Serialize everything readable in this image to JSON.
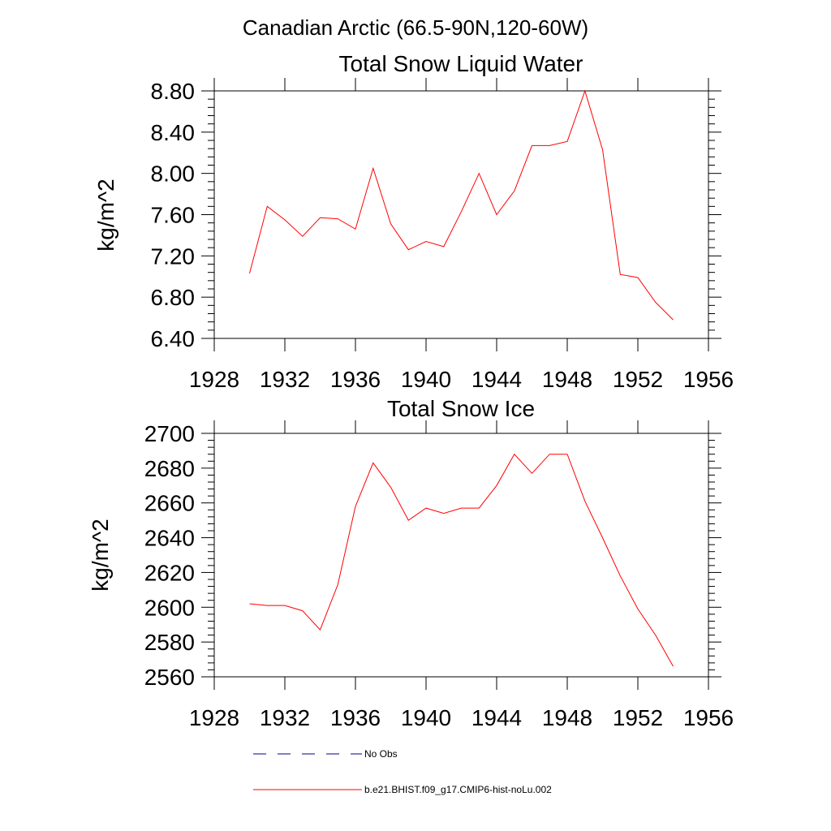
{
  "title": "Canadian Arctic (66.5-90N,120-60W)",
  "legend": {
    "items": [
      {
        "label": "No Obs",
        "color": "#000080",
        "dash": "dashed"
      },
      {
        "label": "b.e21.BHIST.f09_g17.CMIP6-hist-noLu.002",
        "color": "#ff0000",
        "dash": "solid"
      }
    ]
  },
  "chart_data": [
    {
      "type": "line",
      "title": "Total Snow Liquid Water",
      "ylabel": "kg/m^2",
      "xlabel": "",
      "xlim": [
        1928,
        1956
      ],
      "ylim": [
        6.4,
        8.8
      ],
      "xticks": [
        1928,
        1932,
        1936,
        1940,
        1944,
        1948,
        1952,
        1956
      ],
      "yticks": [
        "6.40",
        "6.80",
        "7.20",
        "7.60",
        "8.00",
        "8.40",
        "8.80"
      ],
      "grid": false,
      "series": [
        {
          "color": "#ff0000",
          "x": [
            1930,
            1931,
            1932,
            1933,
            1934,
            1935,
            1936,
            1937,
            1938,
            1939,
            1940,
            1941,
            1942,
            1943,
            1944,
            1945,
            1946,
            1947,
            1948,
            1949,
            1950,
            1951,
            1952,
            1953,
            1954
          ],
          "y": [
            7.03,
            7.68,
            7.55,
            7.39,
            7.57,
            7.56,
            7.46,
            8.05,
            7.51,
            7.26,
            7.34,
            7.29,
            7.63,
            8.0,
            7.6,
            7.83,
            8.27,
            8.27,
            8.31,
            8.8,
            8.23,
            7.02,
            6.99,
            6.75,
            6.58
          ]
        }
      ]
    },
    {
      "type": "line",
      "title": "Total Snow Ice",
      "ylabel": "kg/m^2",
      "xlabel": "",
      "xlim": [
        1928,
        1956
      ],
      "ylim": [
        2560,
        2700
      ],
      "xticks": [
        1928,
        1932,
        1936,
        1940,
        1944,
        1948,
        1952,
        1956
      ],
      "yticks": [
        "2560",
        "2580",
        "2600",
        "2620",
        "2640",
        "2660",
        "2680",
        "2700"
      ],
      "grid": false,
      "series": [
        {
          "color": "#ff0000",
          "x": [
            1930,
            1931,
            1932,
            1933,
            1934,
            1935,
            1936,
            1937,
            1938,
            1939,
            1940,
            1941,
            1942,
            1943,
            1944,
            1945,
            1946,
            1947,
            1948,
            1949,
            1950,
            1951,
            1952,
            1953,
            1954
          ],
          "y": [
            2602,
            2601,
            2601,
            2598,
            2587,
            2613,
            2658,
            2683,
            2669,
            2650,
            2657,
            2654,
            2657,
            2657,
            2670,
            2688,
            2677,
            2688,
            2688,
            2661,
            2640,
            2618,
            2599,
            2584,
            2566
          ]
        }
      ]
    }
  ]
}
